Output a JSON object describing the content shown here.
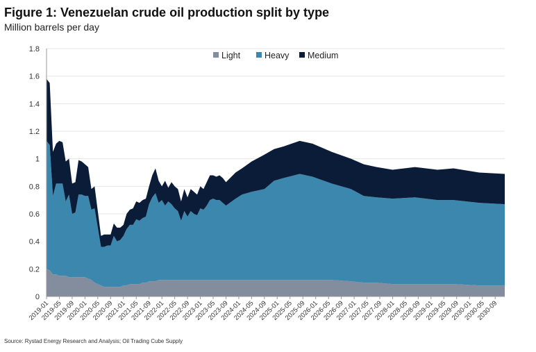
{
  "chart_data": {
    "type": "area",
    "stacked": true,
    "title": "Figure 1: Venezuelan crude oil production split by type",
    "subtitle": "Million barrels per day",
    "ylabel": "Million barrels per day",
    "xlabel": "",
    "ylim": [
      0,
      1.8
    ],
    "yticks": [
      "0",
      "0.2",
      "0.4",
      "0.6",
      "0.8",
      "1",
      "1.2",
      "1.4",
      "1.6",
      "1.8"
    ],
    "xrange": [
      "2019-01",
      "2030-12"
    ],
    "grid": true,
    "legend_position": "top-center",
    "xtick_labels": [
      "2019-01",
      "2019-05",
      "2019-09",
      "2020-01",
      "2020-05",
      "2020-09",
      "2021-01",
      "2021-05",
      "2021-09",
      "2022-01",
      "2022-05",
      "2022-09",
      "2023-01",
      "2023-05",
      "2023-09",
      "2024-01",
      "2024-05",
      "2024-09",
      "2025-01",
      "2025-05",
      "2025-09",
      "2026-01",
      "2026-05",
      "2026-09",
      "2027-01",
      "2027-05",
      "2027-09",
      "2028-01",
      "2028-05",
      "2028-09",
      "2029-01",
      "2029-05",
      "2029-09",
      "2030-01",
      "2030-05",
      "2030-09"
    ],
    "x": [
      "2019-01",
      "2019-02",
      "2019-03",
      "2019-04",
      "2019-05",
      "2019-06",
      "2019-07",
      "2019-08",
      "2019-09",
      "2019-10",
      "2019-11",
      "2019-12",
      "2020-01",
      "2020-02",
      "2020-03",
      "2020-04",
      "2020-05",
      "2020-06",
      "2020-07",
      "2020-08",
      "2020-09",
      "2020-10",
      "2020-11",
      "2020-12",
      "2021-01",
      "2021-02",
      "2021-03",
      "2021-04",
      "2021-05",
      "2021-06",
      "2021-07",
      "2021-08",
      "2021-09",
      "2021-10",
      "2021-11",
      "2021-12",
      "2022-01",
      "2022-02",
      "2022-03",
      "2022-04",
      "2022-05",
      "2022-06",
      "2022-07",
      "2022-08",
      "2022-09",
      "2022-10",
      "2022-11",
      "2022-12",
      "2023-01",
      "2023-02",
      "2023-03",
      "2023-04",
      "2023-05",
      "2023-06",
      "2023-07",
      "2023-08",
      "2023-09",
      "2023-12",
      "2024-02",
      "2024-05",
      "2024-09",
      "2024-12",
      "2025-03",
      "2025-08",
      "2025-12",
      "2026-06",
      "2026-12",
      "2027-04",
      "2027-08",
      "2028-01",
      "2028-08",
      "2029-03",
      "2029-08",
      "2030-04",
      "2030-12"
    ],
    "series": [
      {
        "name": "Light",
        "color": "#848d9d",
        "values": [
          0.2,
          0.19,
          0.16,
          0.16,
          0.15,
          0.15,
          0.15,
          0.14,
          0.14,
          0.14,
          0.14,
          0.14,
          0.14,
          0.13,
          0.12,
          0.1,
          0.09,
          0.08,
          0.07,
          0.07,
          0.07,
          0.07,
          0.07,
          0.07,
          0.08,
          0.08,
          0.09,
          0.09,
          0.09,
          0.09,
          0.1,
          0.1,
          0.11,
          0.11,
          0.11,
          0.12,
          0.12,
          0.12,
          0.12,
          0.12,
          0.12,
          0.12,
          0.12,
          0.12,
          0.12,
          0.12,
          0.12,
          0.12,
          0.12,
          0.12,
          0.12,
          0.12,
          0.12,
          0.12,
          0.12,
          0.12,
          0.12,
          0.12,
          0.12,
          0.12,
          0.12,
          0.12,
          0.12,
          0.12,
          0.12,
          0.12,
          0.11,
          0.1,
          0.1,
          0.09,
          0.09,
          0.09,
          0.09,
          0.08,
          0.08
        ]
      },
      {
        "name": "Heavy",
        "color": "#3c87ad",
        "values": [
          0.93,
          0.91,
          0.57,
          0.66,
          0.67,
          0.67,
          0.54,
          0.6,
          0.46,
          0.47,
          0.6,
          0.6,
          0.59,
          0.6,
          0.51,
          0.54,
          0.41,
          0.28,
          0.29,
          0.3,
          0.3,
          0.37,
          0.33,
          0.34,
          0.36,
          0.41,
          0.43,
          0.43,
          0.47,
          0.46,
          0.47,
          0.48,
          0.56,
          0.61,
          0.64,
          0.56,
          0.58,
          0.54,
          0.57,
          0.55,
          0.52,
          0.5,
          0.43,
          0.5,
          0.46,
          0.5,
          0.48,
          0.47,
          0.52,
          0.51,
          0.54,
          0.58,
          0.59,
          0.58,
          0.58,
          0.56,
          0.54,
          0.59,
          0.62,
          0.64,
          0.66,
          0.72,
          0.74,
          0.77,
          0.75,
          0.7,
          0.67,
          0.63,
          0.62,
          0.62,
          0.63,
          0.61,
          0.61,
          0.6,
          0.59
        ]
      },
      {
        "name": "Medium",
        "color": "#0b1c38",
        "values": [
          0.45,
          0.45,
          0.32,
          0.29,
          0.31,
          0.3,
          0.29,
          0.26,
          0.22,
          0.22,
          0.25,
          0.24,
          0.23,
          0.21,
          0.15,
          0.16,
          0.12,
          0.08,
          0.09,
          0.08,
          0.08,
          0.09,
          0.1,
          0.09,
          0.08,
          0.11,
          0.11,
          0.12,
          0.13,
          0.13,
          0.13,
          0.13,
          0.13,
          0.16,
          0.18,
          0.16,
          0.1,
          0.18,
          0.1,
          0.16,
          0.16,
          0.16,
          0.14,
          0.16,
          0.14,
          0.16,
          0.16,
          0.15,
          0.16,
          0.15,
          0.17,
          0.18,
          0.17,
          0.17,
          0.18,
          0.18,
          0.17,
          0.19,
          0.19,
          0.22,
          0.25,
          0.23,
          0.23,
          0.24,
          0.24,
          0.23,
          0.22,
          0.23,
          0.22,
          0.21,
          0.22,
          0.22,
          0.23,
          0.22,
          0.22
        ]
      }
    ],
    "source": "Source: Rystad Energy Research and Analysis; Oil Trading Cube Supply"
  }
}
